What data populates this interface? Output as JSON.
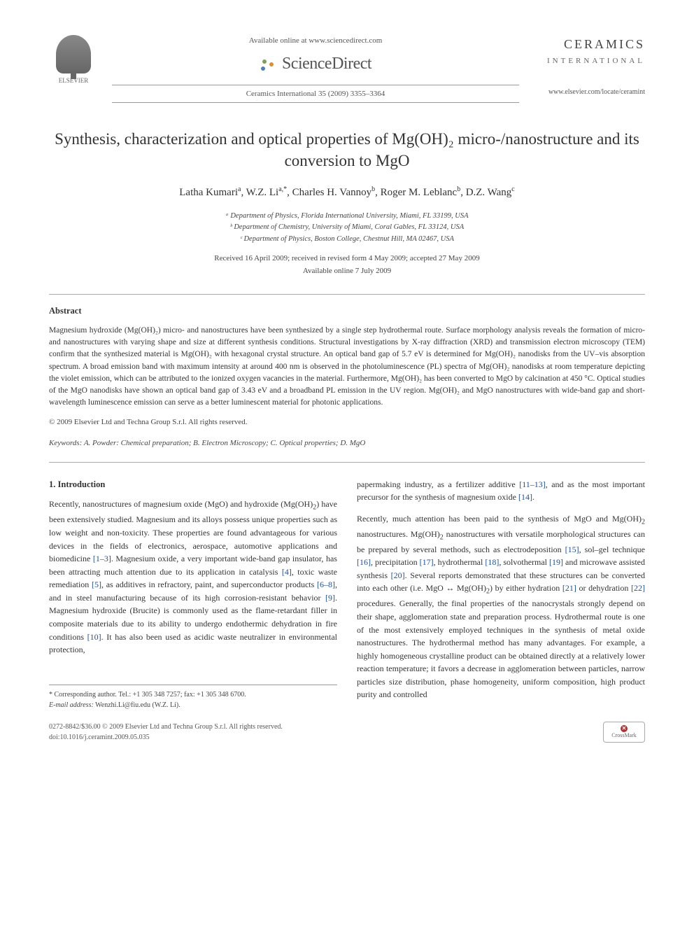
{
  "header": {
    "publisher_logo_text": "ELSEVIER",
    "available_online": "Available online at www.sciencedirect.com",
    "sciencedirect": "ScienceDirect",
    "citation": "Ceramics International 35 (2009) 3355–3364",
    "journal_name": "CERAMICS",
    "journal_sub": "INTERNATIONAL",
    "journal_url": "www.elsevier.com/locate/ceramint"
  },
  "article": {
    "title": "Synthesis, characterization and optical properties of Mg(OH)₂ micro-/nanostructure and its conversion to MgO",
    "authors_html": "Latha Kumari<sup>a</sup>, W.Z. Li<sup>a,*</sup>, Charles H. Vannoy<sup>b</sup>, Roger M. Leblanc<sup>b</sup>, D.Z. Wang<sup>c</sup>",
    "affiliations": [
      "ᵃ Department of Physics, Florida International University, Miami, FL 33199, USA",
      "ᵇ Department of Chemistry, University of Miami, Coral Gables, FL 33124, USA",
      "ᶜ Department of Physics, Boston College, Chestnut Hill, MA 02467, USA"
    ],
    "dates_line1": "Received 16 April 2009; received in revised form 4 May 2009; accepted 27 May 2009",
    "dates_line2": "Available online 7 July 2009"
  },
  "abstract": {
    "heading": "Abstract",
    "text": "Magnesium hydroxide (Mg(OH)₂) micro- and nanostructures have been synthesized by a single step hydrothermal route. Surface morphology analysis reveals the formation of micro- and nanostructures with varying shape and size at different synthesis conditions. Structural investigations by X-ray diffraction (XRD) and transmission electron microscopy (TEM) confirm that the synthesized material is Mg(OH)₂ with hexagonal crystal structure. An optical band gap of 5.7 eV is determined for Mg(OH)₂ nanodisks from the UV–vis absorption spectrum. A broad emission band with maximum intensity at around 400 nm is observed in the photoluminescence (PL) spectra of Mg(OH)₂ nanodisks at room temperature depicting the violet emission, which can be attributed to the ionized oxygen vacancies in the material. Furthermore, Mg(OH)₂ has been converted to MgO by calcination at 450 °C. Optical studies of the MgO nanodisks have shown an optical band gap of 3.43 eV and a broadband PL emission in the UV region. Mg(OH)₂ and MgO nanostructures with wide-band gap and short-wavelength luminescence emission can serve as a better luminescent material for photonic applications.",
    "copyright": "© 2009 Elsevier Ltd and Techna Group S.r.l. All rights reserved."
  },
  "keywords": {
    "label": "Keywords:",
    "text": "A. Powder: Chemical preparation; B. Electron Microscopy; C. Optical properties; D. MgO"
  },
  "body": {
    "section_heading": "1. Introduction",
    "col1_p1": "Recently, nanostructures of magnesium oxide (MgO) and hydroxide (Mg(OH)₂) have been extensively studied. Magnesium and its alloys possess unique properties such as low weight and non-toxicity. These properties are found advantageous for various devices in the fields of electronics, aerospace, automotive applications and biomedicine [1–3]. Magnesium oxide, a very important wide-band gap insulator, has been attracting much attention due to its application in catalysis [4], toxic waste remediation [5], as additives in refractory, paint, and superconductor products [6–8], and in steel manufacturing because of its high corrosion-resistant behavior [9]. Magnesium hydroxide (Brucite) is commonly used as the flame-retardant filler in composite materials due to its ability to undergo endothermic dehydration in fire conditions [10]. It has also been used as acidic waste neutralizer in environmental protection,",
    "col2_p1": "papermaking industry, as a fertilizer additive [11–13], and as the most important precursor for the synthesis of magnesium oxide [14].",
    "col2_p2": "Recently, much attention has been paid to the synthesis of MgO and Mg(OH)₂ nanostructures. Mg(OH)₂ nanostructures with versatile morphological structures can be prepared by several methods, such as electrodeposition [15], sol–gel technique [16], precipitation [17], hydrothermal [18], solvothermal [19] and microwave assisted synthesis [20]. Several reports demonstrated that these structures can be converted into each other (i.e. MgO ↔ Mg(OH)₂) by either hydration [21] or dehydration [22] procedures. Generally, the final properties of the nanocrystals strongly depend on their shape, agglomeration state and preparation process. Hydrothermal route is one of the most extensively employed techniques in the synthesis of metal oxide nanostructures. The hydrothermal method has many advantages. For example, a highly homogeneous crystalline product can be obtained directly at a relatively lower reaction temperature; it favors a decrease in agglomeration between particles, narrow particles size distribution, phase homogeneity, uniform composition, high product purity and controlled"
  },
  "footnote": {
    "corresponding": "* Corresponding author. Tel.: +1 305 348 7257; fax: +1 305 348 6700.",
    "email_label": "E-mail address:",
    "email": "Wenzhi.Li@fiu.edu (W.Z. Li)."
  },
  "footer": {
    "issn_line": "0272-8842/$36.00 © 2009 Elsevier Ltd and Techna Group S.r.l. All rights reserved.",
    "doi_line": "doi:10.1016/j.ceramint.2009.05.035",
    "crossmark": "CrossMark"
  },
  "colors": {
    "ref_link": "#2050a0",
    "text": "#333333",
    "muted": "#555555",
    "rule": "#999999"
  }
}
